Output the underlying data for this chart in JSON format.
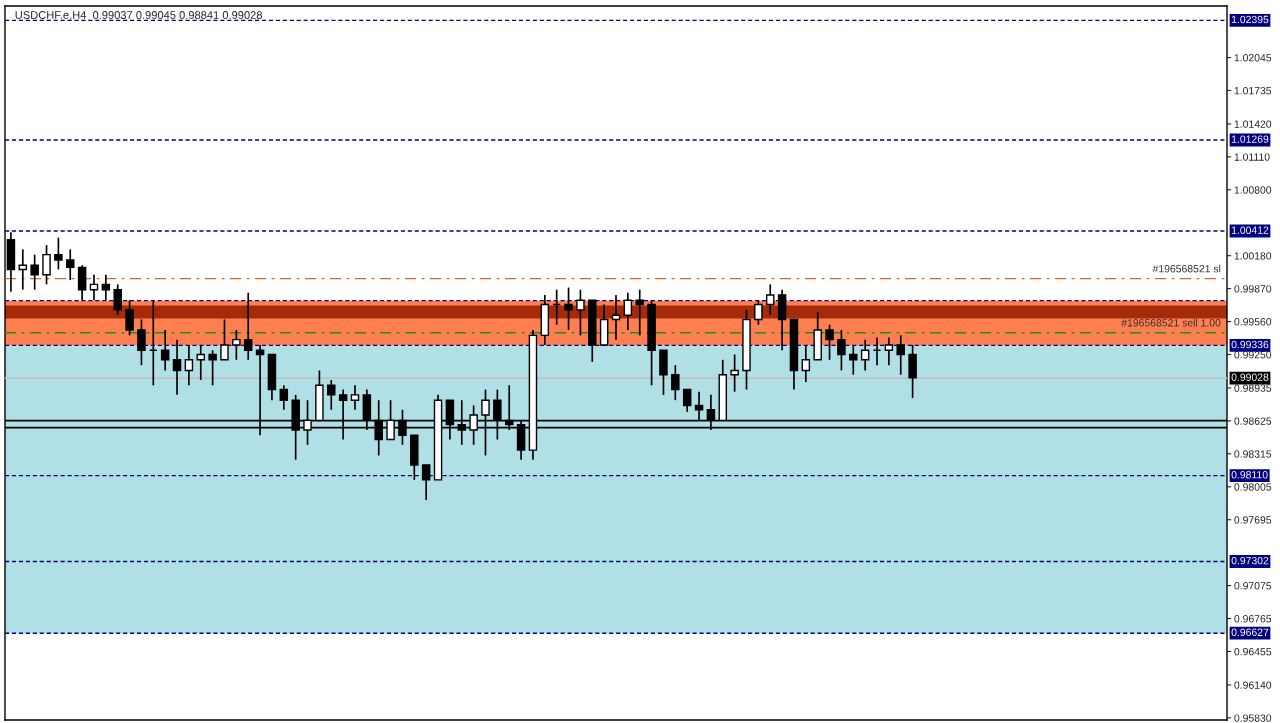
{
  "chart_data": {
    "type": "candlestick",
    "title": "USDCHF.e,H4  0.99037 0.99045 0.98841 0.99028",
    "categories": [
      null,
      null,
      null,
      null,
      null,
      null,
      null,
      null,
      null,
      null,
      null,
      null,
      null,
      null,
      null,
      null,
      null,
      null,
      null,
      null,
      null,
      null,
      null,
      null,
      null,
      null,
      null,
      null,
      null,
      null,
      null,
      null,
      null,
      null,
      null,
      null,
      null,
      null,
      null,
      null,
      null,
      null,
      null,
      null,
      null,
      null,
      null,
      null,
      null,
      null,
      null,
      null,
      null,
      null,
      null,
      null,
      null,
      null,
      null,
      null,
      null,
      null,
      null,
      null,
      null,
      null,
      null,
      null,
      null,
      null,
      null,
      null,
      null,
      null,
      null,
      null,
      null,
      null,
      null,
      null,
      null,
      null,
      null,
      null,
      null,
      null,
      null,
      null,
      null,
      null,
      null,
      null,
      null,
      null,
      null,
      null,
      null,
      null,
      null,
      null,
      null,
      null,
      null
    ],
    "ohlc": [
      [
        1.0033,
        1.004,
        0.9984,
        1.0005
      ],
      [
        1.0005,
        1.0024,
        0.9986,
        1.0009
      ],
      [
        1.0009,
        1.0019,
        0.9986,
        1.0
      ],
      [
        1.0,
        1.0028,
        0.9991,
        1.0019
      ],
      [
        1.0019,
        1.0035,
        1.0005,
        1.0014
      ],
      [
        1.0014,
        1.0024,
        0.9995,
        1.0007
      ],
      [
        1.0007,
        1.0009,
        0.9976,
        0.9986
      ],
      [
        0.9986,
        1.0,
        0.9976,
        0.9991
      ],
      [
        0.9991,
        1.0,
        0.9976,
        0.9986
      ],
      [
        0.9986,
        0.9991,
        0.9962,
        0.9967
      ],
      [
        0.9967,
        0.9976,
        0.9943,
        0.9948
      ],
      [
        0.9948,
        0.9958,
        0.9915,
        0.9929
      ],
      [
        0.9929,
        0.9976,
        0.9896,
        0.9929
      ],
      [
        0.9929,
        0.9948,
        0.991,
        0.992
      ],
      [
        0.992,
        0.9939,
        0.9887,
        0.991
      ],
      [
        0.991,
        0.9934,
        0.9896,
        0.992
      ],
      [
        0.992,
        0.9934,
        0.9901,
        0.9925
      ],
      [
        0.9925,
        0.9929,
        0.9896,
        0.992
      ],
      [
        0.992,
        0.9958,
        0.992,
        0.9934
      ],
      [
        0.9934,
        0.9948,
        0.992,
        0.9939
      ],
      [
        0.9939,
        0.9983,
        0.992,
        0.9929
      ],
      [
        0.9929,
        0.9934,
        0.9849,
        0.9925
      ],
      [
        0.9925,
        0.9925,
        0.9882,
        0.9892
      ],
      [
        0.9892,
        0.9896,
        0.9873,
        0.9882
      ],
      [
        0.9882,
        0.9887,
        0.9826,
        0.9854
      ],
      [
        0.9854,
        0.9882,
        0.984,
        0.9863
      ],
      [
        0.9863,
        0.991,
        0.9863,
        0.9896
      ],
      [
        0.9896,
        0.9901,
        0.9873,
        0.9887
      ],
      [
        0.9887,
        0.9892,
        0.9845,
        0.9882
      ],
      [
        0.9882,
        0.9896,
        0.9873,
        0.9887
      ],
      [
        0.9887,
        0.9892,
        0.9854,
        0.9863
      ],
      [
        0.9863,
        0.9882,
        0.983,
        0.9845
      ],
      [
        0.9845,
        0.9882,
        0.9845,
        0.9863
      ],
      [
        0.9863,
        0.9873,
        0.984,
        0.9849
      ],
      [
        0.9849,
        0.9849,
        0.9807,
        0.9821
      ],
      [
        0.9821,
        0.9821,
        0.9788,
        0.9807
      ],
      [
        0.9807,
        0.9887,
        0.9807,
        0.9882
      ],
      [
        0.9882,
        0.9882,
        0.9845,
        0.9859
      ],
      [
        0.9859,
        0.9882,
        0.984,
        0.9854
      ],
      [
        0.9854,
        0.9877,
        0.984,
        0.9868
      ],
      [
        0.9868,
        0.9892,
        0.983,
        0.9882
      ],
      [
        0.9882,
        0.9892,
        0.9845,
        0.9863
      ],
      [
        0.9863,
        0.9896,
        0.9854,
        0.9859
      ],
      [
        0.9859,
        0.9863,
        0.9826,
        0.9835
      ],
      [
        0.9835,
        0.9948,
        0.9826,
        0.9943
      ],
      [
        0.9943,
        0.9981,
        0.9934,
        0.9972
      ],
      [
        0.9972,
        0.9986,
        0.9953,
        0.9972
      ],
      [
        0.9972,
        0.9988,
        0.9948,
        0.9967
      ],
      [
        0.9967,
        0.9986,
        0.9943,
        0.9976
      ],
      [
        0.9976,
        0.9976,
        0.9918,
        0.9934
      ],
      [
        0.9934,
        0.9972,
        0.9934,
        0.9958
      ],
      [
        0.9958,
        0.9981,
        0.9939,
        0.9962
      ],
      [
        0.9962,
        0.9983,
        0.9948,
        0.9976
      ],
      [
        0.9976,
        0.9986,
        0.9943,
        0.9972
      ],
      [
        0.9972,
        0.9976,
        0.9896,
        0.9929
      ],
      [
        0.9929,
        0.9929,
        0.9887,
        0.9906
      ],
      [
        0.9906,
        0.9915,
        0.9882,
        0.9892
      ],
      [
        0.9892,
        0.9892,
        0.9871,
        0.9877
      ],
      [
        0.9877,
        0.989,
        0.9863,
        0.9873
      ],
      [
        0.9873,
        0.9887,
        0.9854,
        0.9863
      ],
      [
        0.9863,
        0.992,
        0.9863,
        0.9906
      ],
      [
        0.9906,
        0.9925,
        0.989,
        0.991
      ],
      [
        0.991,
        0.9967,
        0.9892,
        0.9958
      ],
      [
        0.9958,
        0.9976,
        0.9953,
        0.9972
      ],
      [
        0.9972,
        0.9991,
        0.9962,
        0.9981
      ],
      [
        0.9981,
        0.9986,
        0.9929,
        0.9958
      ],
      [
        0.9958,
        0.9958,
        0.9892,
        0.991
      ],
      [
        0.991,
        0.9934,
        0.9899,
        0.992
      ],
      [
        0.992,
        0.9965,
        0.992,
        0.9948
      ],
      [
        0.9948,
        0.9953,
        0.992,
        0.9939
      ],
      [
        0.9939,
        0.9948,
        0.991,
        0.9925
      ],
      [
        0.9925,
        0.9934,
        0.9906,
        0.992
      ],
      [
        0.992,
        0.9939,
        0.991,
        0.9929
      ],
      [
        0.9929,
        0.9941,
        0.9915,
        0.9929
      ],
      [
        0.9929,
        0.9941,
        0.9915,
        0.9934
      ],
      [
        0.9934,
        0.9943,
        0.9906,
        0.9925
      ],
      [
        0.9925,
        0.9934,
        0.9884,
        0.9903
      ],
      null,
      null,
      null,
      null,
      null,
      null,
      null,
      null,
      null,
      null,
      null,
      null,
      null,
      null,
      null,
      null,
      null,
      null,
      null,
      null,
      null,
      null,
      null,
      null,
      null,
      null
    ],
    "color": "#000000",
    "ylim": [
      0.9581,
      1.0253
    ],
    "yticks": [
      {
        "value": 1.02045,
        "label": "1.02045"
      },
      {
        "value": 1.01735,
        "label": "1.01735"
      },
      {
        "value": 1.0142,
        "label": "1.01420"
      },
      {
        "value": 1.0111,
        "label": "1.01110"
      },
      {
        "value": 1.008,
        "label": "1.00800"
      },
      {
        "value": 1.0018,
        "label": "1.00180"
      },
      {
        "value": 0.9987,
        "label": "0.99870"
      },
      {
        "value": 0.9956,
        "label": "0.99560"
      },
      {
        "value": 0.9925,
        "label": "0.99250"
      },
      {
        "value": 0.98935,
        "label": "0.98935"
      },
      {
        "value": 0.98625,
        "label": "0.98625"
      },
      {
        "value": 0.98315,
        "label": "0.98315"
      },
      {
        "value": 0.98005,
        "label": "0.98005"
      },
      {
        "value": 0.97695,
        "label": "0.97695"
      },
      {
        "value": 0.97075,
        "label": "0.97075"
      },
      {
        "value": 0.96765,
        "label": "0.96765"
      },
      {
        "value": 0.96455,
        "label": "0.96455"
      },
      {
        "value": 0.9614,
        "label": "0.96140"
      },
      {
        "value": 0.9583,
        "label": "0.95830"
      }
    ],
    "tick_labels": "y",
    "bands": [
      {
        "axis": "y",
        "from": 0.96627,
        "to": 0.99336,
        "color": "#b0e0e6"
      },
      {
        "axis": "y",
        "from": 0.99336,
        "to": 0.99757,
        "color": "#ff7f50"
      },
      {
        "axis": "y",
        "from": 0.99588,
        "to": 0.99711,
        "color": "#a52a0a"
      }
    ],
    "ref_lines": [
      {
        "axis": "y",
        "value": 1.02395,
        "label": "1.02395",
        "color": "#000080",
        "line_style": "dashed"
      },
      {
        "axis": "y",
        "value": 1.01269,
        "label": "1.01269",
        "color": "#000080",
        "line_style": "dashed"
      },
      {
        "axis": "y",
        "value": 1.00412,
        "label": "1.00412",
        "color": "#000080",
        "line_style": "dashed"
      },
      {
        "axis": "y",
        "value": 0.99757,
        "color": "#000080",
        "line_style": "dashed"
      },
      {
        "axis": "y",
        "value": 0.99336,
        "label": "0.99336",
        "color": "#000080",
        "line_style": "dashed"
      },
      {
        "axis": "y",
        "value": 0.9811,
        "label": "0.98110",
        "color": "#000080",
        "line_style": "dashed"
      },
      {
        "axis": "y",
        "value": 0.97302,
        "label": "0.97302",
        "color": "#000080",
        "line_style": "dashed"
      },
      {
        "axis": "y",
        "value": 0.96627,
        "label": "0.96627",
        "color": "#000080",
        "line_style": "dashed"
      },
      {
        "axis": "y",
        "value": 0.99964,
        "label": "#196568521 sl",
        "color": "#d2691e",
        "line_style": "dashdot"
      },
      {
        "axis": "y",
        "value": 0.99455,
        "label": "#196568521 sell 1.00",
        "color": "#228b22",
        "line_style": "dashdot"
      },
      {
        "axis": "y",
        "value": 0.99028,
        "label": "0.99028",
        "color": "#c0c0c0",
        "line_style": "solid"
      },
      {
        "axis": "y",
        "value": 0.98627,
        "color": "#000000",
        "line_style": "solid"
      },
      {
        "axis": "y",
        "value": 0.98561,
        "color": "#000000",
        "line_style": "solid"
      }
    ]
  }
}
